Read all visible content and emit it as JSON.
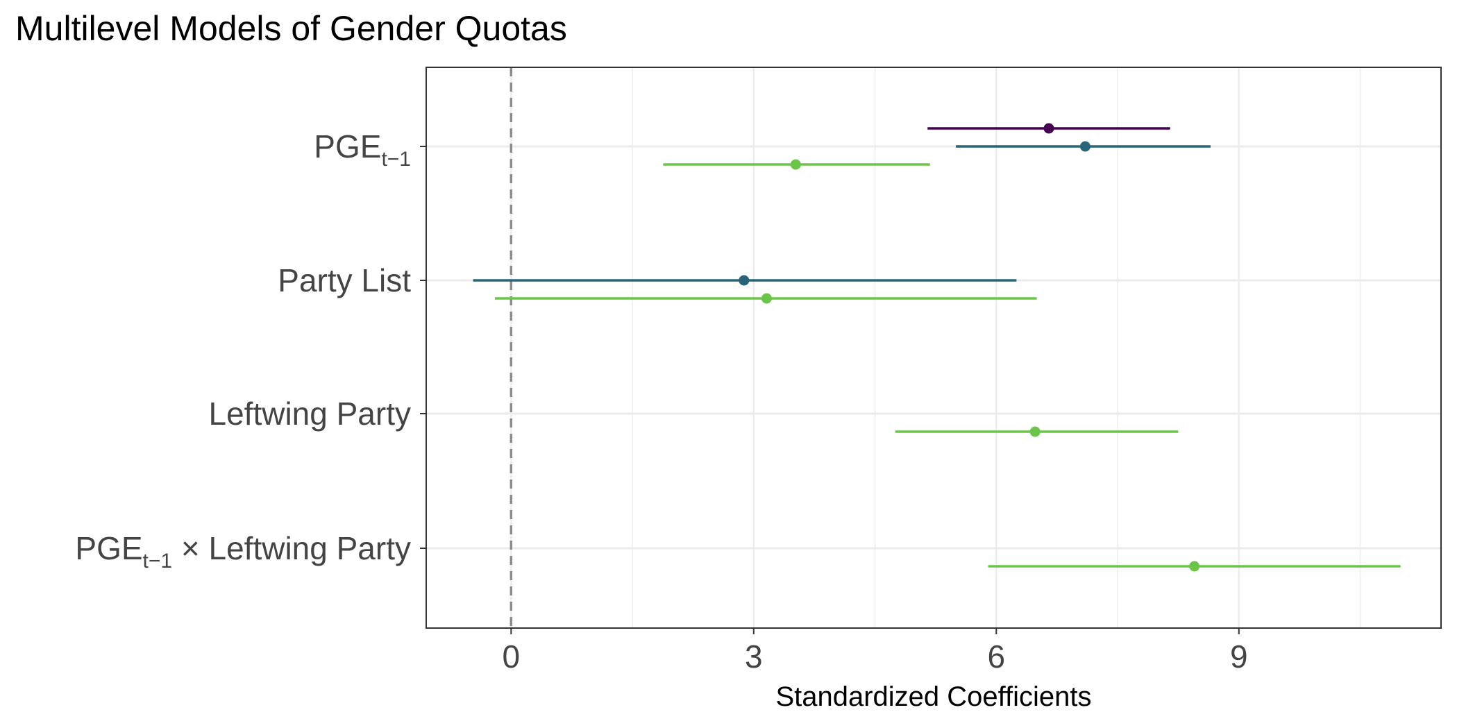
{
  "chart_data": {
    "type": "dot-whisker",
    "title": "Multilevel Models of Gender Quotas",
    "xlabel": "Standardized Coefficients",
    "ylabel": "",
    "xlim": [
      -1.05,
      11.5
    ],
    "x_ticks": [
      0,
      3,
      6,
      9
    ],
    "x_tick_labels": [
      "0",
      "3",
      "6",
      "9"
    ],
    "reference_line": 0,
    "grid": true,
    "categories": [
      {
        "label": "PGE",
        "sub": "t−1",
        "suffix": ""
      },
      {
        "label": "Party List",
        "sub": "",
        "suffix": ""
      },
      {
        "label": "Leftwing Party",
        "sub": "",
        "suffix": ""
      },
      {
        "label": "PGE",
        "sub": "t−1",
        "suffix": " × Leftwing Party"
      }
    ],
    "series": [
      {
        "color": "#440154",
        "points": [
          {
            "category": 0,
            "estimate": 6.65,
            "low": 5.15,
            "high": 8.15
          }
        ]
      },
      {
        "color": "#2A6478",
        "points": [
          {
            "category": 0,
            "estimate": 7.1,
            "low": 5.5,
            "high": 8.65
          },
          {
            "category": 1,
            "estimate": 2.88,
            "low": -0.47,
            "high": 6.25
          }
        ]
      },
      {
        "color": "#6CC54A",
        "points": [
          {
            "category": 0,
            "estimate": 3.52,
            "low": 1.88,
            "high": 5.18
          },
          {
            "category": 1,
            "estimate": 3.16,
            "low": -0.2,
            "high": 6.5
          },
          {
            "category": 2,
            "estimate": 6.48,
            "low": 4.75,
            "high": 8.25
          },
          {
            "category": 3,
            "estimate": 8.45,
            "low": 5.9,
            "high": 11.0
          }
        ]
      }
    ]
  }
}
